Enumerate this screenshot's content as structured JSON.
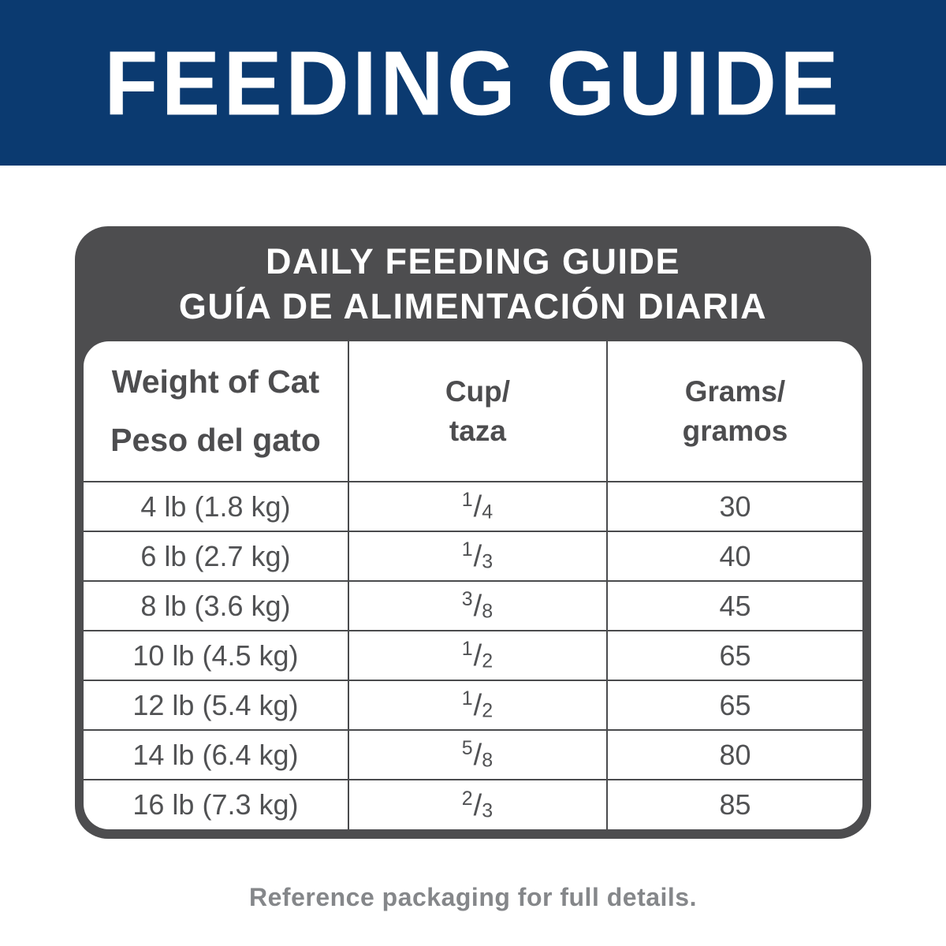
{
  "banner": {
    "title": "FEEDING GUIDE"
  },
  "card": {
    "header": {
      "title_en": "DAILY FEEDING GUIDE",
      "title_es": "GUÍA DE ALIMENTACIÓN DIARIA"
    },
    "table": {
      "columns": [
        {
          "en": "Weight of Cat",
          "es": "Peso del gato"
        },
        {
          "en": "Cup/",
          "es": "taza"
        },
        {
          "en": "Grams/",
          "es": "gramos"
        }
      ],
      "fraction_slash": "/",
      "rows": [
        {
          "weight": "4 lb (1.8 kg)",
          "cup": {
            "num": "1",
            "den": "4"
          },
          "grams": "30"
        },
        {
          "weight": "6 lb (2.7 kg)",
          "cup": {
            "num": "1",
            "den": "3"
          },
          "grams": "40"
        },
        {
          "weight": "8 lb (3.6 kg)",
          "cup": {
            "num": "3",
            "den": "8"
          },
          "grams": "45"
        },
        {
          "weight": "10 lb (4.5 kg)",
          "cup": {
            "num": "1",
            "den": "2"
          },
          "grams": "65"
        },
        {
          "weight": "12 lb (5.4 kg)",
          "cup": {
            "num": "1",
            "den": "2"
          },
          "grams": "65"
        },
        {
          "weight": "14 lb (6.4 kg)",
          "cup": {
            "num": "5",
            "den": "8"
          },
          "grams": "80"
        },
        {
          "weight": "16 lb (7.3 kg)",
          "cup": {
            "num": "2",
            "den": "3"
          },
          "grams": "85"
        }
      ]
    }
  },
  "footer": {
    "note": "Reference packaging for full details."
  },
  "colors": {
    "banner_bg": "#0b3a70",
    "card_gray": "#4d4d4f",
    "divider": "#4a4b4d",
    "text_dark": "#515254",
    "note_gray": "#85878a"
  }
}
